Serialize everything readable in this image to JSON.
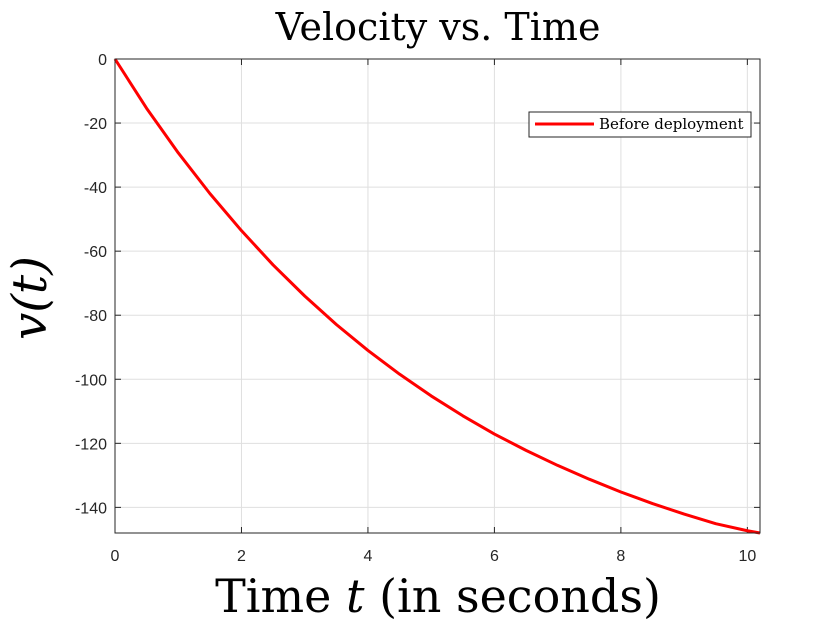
{
  "chart_data": {
    "type": "line",
    "title": "Velocity vs. Time",
    "xlabel": "Time t (in seconds)",
    "ylabel": "v(t)",
    "xlim": [
      0,
      10.2
    ],
    "ylim": [
      -148,
      0
    ],
    "xticks": [
      0,
      2,
      4,
      6,
      8,
      10
    ],
    "yticks": [
      0,
      -20,
      -40,
      -60,
      -80,
      -100,
      -120,
      -140
    ],
    "xtick_labels": [
      "0",
      "2",
      "4",
      "6",
      "8",
      "10"
    ],
    "ytick_labels": [
      "0",
      "-20",
      "-40",
      "-60",
      "-80",
      "-100",
      "-120",
      "-140"
    ],
    "grid": true,
    "legend_position": "top-right",
    "series": [
      {
        "name": "Before deployment",
        "color": "#ff0000",
        "x": [
          0,
          0.5,
          1,
          1.5,
          2,
          2.5,
          3,
          3.5,
          4,
          4.5,
          5,
          5.5,
          6,
          6.5,
          7,
          7.5,
          8,
          8.5,
          9,
          9.5,
          10,
          10.2
        ],
        "y": [
          0,
          -15.4,
          -29.3,
          -42.0,
          -53.6,
          -64.3,
          -74.0,
          -82.9,
          -91.0,
          -98.4,
          -105.2,
          -111.4,
          -117.1,
          -122.2,
          -126.9,
          -131.2,
          -135.2,
          -138.8,
          -142.1,
          -145.1,
          -147.3,
          -148.0
        ]
      }
    ]
  }
}
